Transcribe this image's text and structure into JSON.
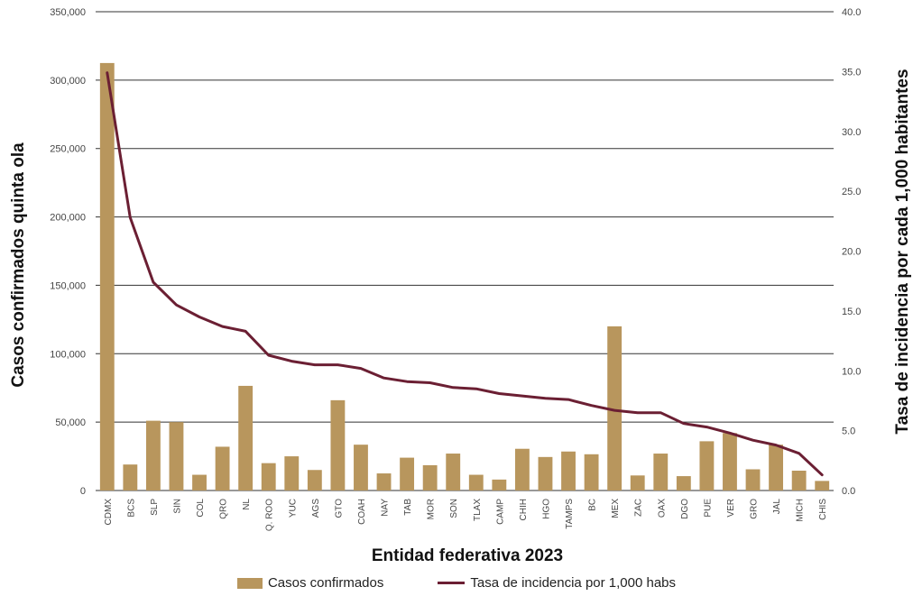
{
  "colors": {
    "bar": "#b8965d",
    "line": "#6b1f33",
    "grid": "#333333"
  },
  "chart_data": {
    "type": "bar",
    "xlabel": "Entidad federativa 2023",
    "ylabel": "Casos confirmados quinta ola",
    "y2label": "Tasa de incidencia por cada 1,000 habitantes",
    "ylim": [
      0,
      350000
    ],
    "y2lim": [
      0,
      40
    ],
    "yticks": [
      "0",
      "50,000",
      "100,000",
      "150,000",
      "200,000",
      "250,000",
      "300,000",
      "350,000"
    ],
    "y2ticks": [
      "0.0",
      "5.0",
      "10.0",
      "15.0",
      "20.0",
      "25.0",
      "30.0",
      "35.0",
      "40.0"
    ],
    "grid": true,
    "legend_position": "bottom",
    "categories": [
      "CDMX",
      "BCS",
      "SLP",
      "SIN",
      "COL",
      "QRO",
      "NL",
      "Q. ROO",
      "YUC",
      "AGS",
      "GTO",
      "COAH",
      "NAY",
      "TAB",
      "MOR",
      "SON",
      "TLAX",
      "CAMP",
      "CHIH",
      "HGO",
      "TAMPS",
      "BC",
      "MEX",
      "ZAC",
      "OAX",
      "DGO",
      "PUE",
      "VER",
      "GRO",
      "JAL",
      "MICH",
      "CHIS"
    ],
    "series": [
      {
        "name": "Casos confirmados",
        "kind": "bar",
        "values": [
          312500,
          19000,
          51000,
          50000,
          11500,
          32000,
          76500,
          20000,
          25000,
          15000,
          66000,
          33500,
          12500,
          24000,
          18500,
          27000,
          11500,
          8000,
          30500,
          24500,
          28500,
          26500,
          120000,
          11000,
          27000,
          10500,
          36000,
          42000,
          15500,
          33500,
          14500,
          7000
        ]
      },
      {
        "name": "Tasa de incidencia por 1,000 habs",
        "kind": "line",
        "axis": "right",
        "values": [
          34.9,
          22.8,
          17.4,
          15.5,
          14.5,
          13.7,
          13.3,
          11.3,
          10.8,
          10.5,
          10.5,
          10.2,
          9.4,
          9.1,
          9.0,
          8.6,
          8.5,
          8.1,
          7.9,
          7.7,
          7.6,
          7.1,
          6.7,
          6.5,
          6.5,
          5.6,
          5.3,
          4.8,
          4.2,
          3.8,
          3.1,
          1.3
        ]
      }
    ]
  }
}
